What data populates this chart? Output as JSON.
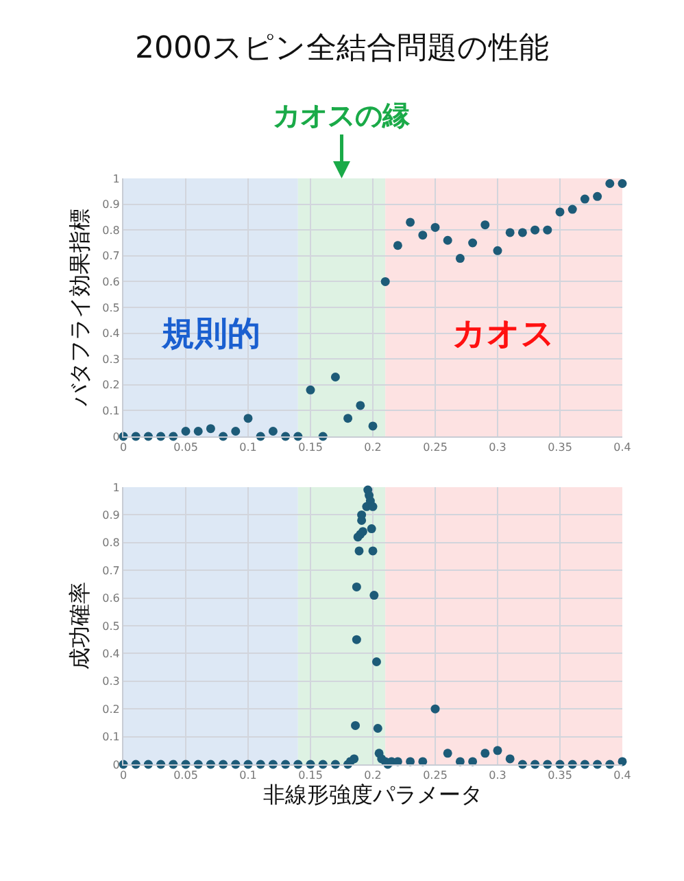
{
  "chart_data": [
    {
      "type": "scatter",
      "title": "2000スピン全結合問題の性能",
      "ylabel": "バタフライ効果指標",
      "xlim": [
        0,
        0.4
      ],
      "xticks": [
        0,
        0.05,
        0.1,
        0.15,
        0.2,
        0.25,
        0.3,
        0.35,
        0.4
      ],
      "ylim": [
        0,
        1
      ],
      "yticks": [
        0,
        0.1,
        0.2,
        0.3,
        0.4,
        0.5,
        0.6,
        0.7,
        0.8,
        0.9,
        1
      ],
      "grid": true,
      "marker": "circle",
      "bands": [
        {
          "axis": "x",
          "from": 0,
          "to": 0.14,
          "label": "規則的",
          "color": "#dde8f5"
        },
        {
          "axis": "x",
          "from": 0.14,
          "to": 0.21,
          "label": "カオスの縁",
          "color": "#def2e3"
        },
        {
          "axis": "x",
          "from": 0.21,
          "to": 0.4,
          "label": "カオス",
          "color": "#fde2e2"
        }
      ],
      "series": [
        {
          "color": "#1d5b78",
          "x": [
            0,
            0.01,
            0.02,
            0.03,
            0.04,
            0.05,
            0.06,
            0.07,
            0.08,
            0.09,
            0.1,
            0.11,
            0.12,
            0.13,
            0.14,
            0.15,
            0.16,
            0.17,
            0.18,
            0.19,
            0.2,
            0.21,
            0.22,
            0.23,
            0.24,
            0.25,
            0.26,
            0.27,
            0.28,
            0.29,
            0.3,
            0.31,
            0.32,
            0.33,
            0.34,
            0.35,
            0.36,
            0.37,
            0.38,
            0.39,
            0.4
          ],
          "values": [
            0,
            0,
            0,
            0,
            0,
            0.02,
            0.02,
            0.03,
            0,
            0.02,
            0.07,
            0,
            0.02,
            0,
            0,
            0.18,
            0,
            0.23,
            0.07,
            0.12,
            0.04,
            0.6,
            0.74,
            0.83,
            0.78,
            0.81,
            0.76,
            0.69,
            0.75,
            0.82,
            0.72,
            0.79,
            0.79,
            0.8,
            0.8,
            0.87,
            0.88,
            0.92,
            0.93,
            0.98,
            0.98
          ]
        }
      ]
    },
    {
      "type": "scatter",
      "ylabel": "成功確率",
      "xlabel": "非線形強度パラメータ",
      "xlim": [
        0,
        0.4
      ],
      "xticks": [
        0,
        0.05,
        0.1,
        0.15,
        0.2,
        0.25,
        0.3,
        0.35,
        0.4
      ],
      "ylim": [
        0,
        1
      ],
      "yticks": [
        0,
        0.1,
        0.2,
        0.3,
        0.4,
        0.5,
        0.6,
        0.7,
        0.8,
        0.9,
        1
      ],
      "grid": true,
      "marker": "circle",
      "bands": [
        {
          "axis": "x",
          "from": 0,
          "to": 0.14,
          "color": "#dde8f5"
        },
        {
          "axis": "x",
          "from": 0.14,
          "to": 0.21,
          "color": "#def2e3"
        },
        {
          "axis": "x",
          "from": 0.21,
          "to": 0.4,
          "color": "#fde2e2"
        }
      ],
      "series": [
        {
          "color": "#1d5b78",
          "x": [
            0,
            0.01,
            0.02,
            0.03,
            0.04,
            0.05,
            0.06,
            0.07,
            0.08,
            0.09,
            0.1,
            0.11,
            0.12,
            0.13,
            0.14,
            0.15,
            0.16,
            0.17,
            0.18,
            0.182,
            0.185,
            0.186,
            0.187,
            0.187,
            0.189,
            0.188,
            0.19,
            0.192,
            0.191,
            0.191,
            0.195,
            0.196,
            0.197,
            0.198,
            0.2,
            0.199,
            0.2,
            0.201,
            0.203,
            0.204,
            0.205,
            0.207,
            0.21,
            0.212,
            0.215,
            0.22,
            0.23,
            0.24,
            0.25,
            0.26,
            0.27,
            0.28,
            0.29,
            0.3,
            0.31,
            0.32,
            0.33,
            0.34,
            0.35,
            0.36,
            0.37,
            0.38,
            0.39,
            0.4
          ],
          "values": [
            0,
            0,
            0,
            0,
            0,
            0,
            0,
            0,
            0,
            0,
            0,
            0,
            0,
            0,
            0,
            0,
            0,
            0,
            0,
            0.01,
            0.02,
            0.14,
            0.45,
            0.64,
            0.77,
            0.82,
            0.83,
            0.84,
            0.88,
            0.9,
            0.93,
            0.99,
            0.97,
            0.95,
            0.93,
            0.85,
            0.77,
            0.61,
            0.37,
            0.13,
            0.04,
            0.02,
            0.01,
            0,
            0.01,
            0.01,
            0.01,
            0.01,
            0.2,
            0.04,
            0.01,
            0.01,
            0.04,
            0.05,
            0.02,
            0,
            0,
            0,
            0,
            0,
            0,
            0,
            0,
            0.01
          ]
        }
      ]
    }
  ]
}
